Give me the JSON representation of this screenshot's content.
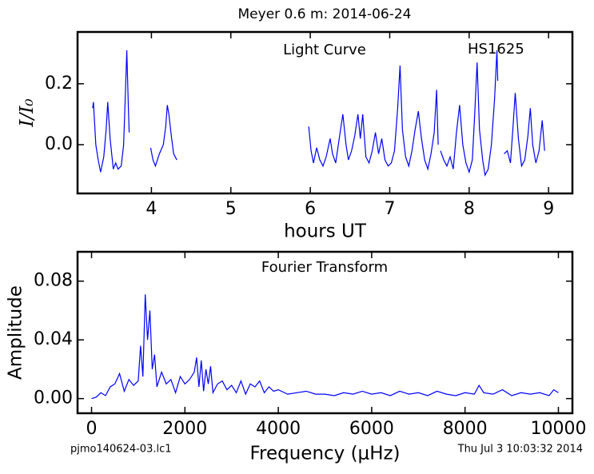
{
  "title": "Meyer 0.6 m:  2014-06-24",
  "footer_left": "pjmo140624-03.lc1",
  "footer_right": "Thu Jul  3 10:03:32 2014",
  "chart_data": [
    {
      "type": "line",
      "annotations": [
        "Light Curve",
        "HS1625"
      ],
      "xlabel": "hours UT",
      "ylabel": "I/I₀",
      "color": "#0000ff",
      "xlim": [
        3.07,
        9.3
      ],
      "xticks": [
        4,
        5,
        6,
        7,
        8,
        9
      ],
      "ylim": [
        -0.16,
        0.37
      ],
      "yticks": [
        {
          "value": 0,
          "label": "0.0"
        },
        {
          "value": 0.2,
          "label": "0.2"
        }
      ],
      "x": [
        3.26,
        3.27,
        3.3,
        3.33,
        3.36,
        3.4,
        3.43,
        3.45,
        3.48,
        3.52,
        3.55,
        3.58,
        3.62,
        3.65,
        3.67,
        3.69,
        3.71,
        3.72,
        null,
        3.99,
        4.02,
        4.05,
        4.1,
        4.15,
        4.18,
        4.2,
        4.22,
        4.25,
        4.28,
        4.32,
        null,
        5.98,
        6.01,
        6.04,
        6.08,
        6.12,
        6.16,
        6.2,
        6.25,
        6.28,
        6.32,
        6.37,
        6.41,
        6.45,
        6.48,
        6.52,
        6.56,
        6.6,
        6.63,
        6.66,
        6.7,
        6.74,
        6.78,
        6.82,
        6.86,
        6.9,
        6.94,
        6.98,
        7.02,
        7.06,
        7.1,
        7.13,
        7.16,
        7.2,
        7.24,
        7.28,
        7.32,
        7.36,
        7.4,
        7.44,
        7.48,
        7.52,
        7.56,
        7.59,
        7.61,
        null,
        7.64,
        7.68,
        7.72,
        7.76,
        7.8,
        7.84,
        7.88,
        7.92,
        7.96,
        8.0,
        8.04,
        8.07,
        8.1,
        8.13,
        8.17,
        8.2,
        8.24,
        8.28,
        8.32,
        8.35,
        8.36,
        null,
        8.44,
        8.48,
        8.52,
        8.55,
        8.58,
        8.62,
        8.66,
        8.7,
        8.74,
        8.77,
        8.8,
        8.84,
        8.88,
        8.92,
        8.95
      ],
      "values": [
        0.12,
        0.14,
        0.0,
        -0.05,
        -0.09,
        -0.04,
        0.05,
        0.14,
        0.02,
        -0.08,
        -0.06,
        -0.08,
        -0.07,
        0.0,
        0.15,
        0.31,
        0.12,
        0.04,
        null,
        -0.01,
        -0.05,
        -0.07,
        -0.03,
        0.0,
        0.06,
        0.13,
        0.1,
        0.03,
        -0.03,
        -0.05,
        null,
        0.06,
        -0.02,
        -0.06,
        -0.01,
        -0.05,
        -0.07,
        -0.04,
        0.02,
        -0.03,
        -0.06,
        0.03,
        0.1,
        0.0,
        -0.05,
        -0.02,
        0.03,
        0.1,
        0.02,
        0.1,
        -0.04,
        -0.06,
        -0.02,
        0.04,
        -0.03,
        0.02,
        -0.05,
        -0.07,
        -0.06,
        -0.02,
        0.12,
        0.26,
        0.05,
        -0.04,
        -0.07,
        -0.02,
        0.05,
        0.11,
        0.02,
        -0.05,
        -0.08,
        -0.03,
        0.04,
        0.18,
        0.0,
        null,
        -0.02,
        -0.05,
        -0.07,
        -0.04,
        -0.08,
        0.04,
        0.13,
        0.0,
        -0.06,
        -0.09,
        -0.05,
        0.1,
        0.27,
        0.05,
        -0.05,
        -0.1,
        -0.08,
        0.0,
        0.15,
        0.31,
        0.21,
        null,
        -0.03,
        -0.02,
        -0.06,
        0.05,
        0.17,
        0.02,
        -0.07,
        -0.05,
        0.03,
        0.12,
        0.0,
        -0.06,
        -0.02,
        0.08,
        -0.02
      ]
    },
    {
      "type": "line",
      "annotations": [
        "Fourier Transform"
      ],
      "xlabel": "Frequency (μHz)",
      "ylabel": "Amplitude",
      "color": "#0000ff",
      "xlim": [
        -300,
        10300
      ],
      "xticks": [
        0,
        2000,
        4000,
        6000,
        8000,
        10000
      ],
      "ylim": [
        -0.01,
        0.1
      ],
      "yticks": [
        {
          "value": 0,
          "label": "0.00"
        },
        {
          "value": 0.04,
          "label": "0.04"
        },
        {
          "value": 0.08,
          "label": "0.08"
        }
      ],
      "x": [
        0,
        100,
        200,
        300,
        400,
        500,
        600,
        700,
        800,
        900,
        1000,
        1050,
        1100,
        1150,
        1200,
        1250,
        1300,
        1350,
        1400,
        1500,
        1600,
        1700,
        1800,
        1900,
        2000,
        2100,
        2200,
        2250,
        2300,
        2350,
        2400,
        2450,
        2500,
        2550,
        2600,
        2700,
        2800,
        2900,
        3000,
        3100,
        3200,
        3300,
        3400,
        3500,
        3600,
        3700,
        3800,
        3900,
        4000,
        4200,
        4400,
        4600,
        4800,
        5000,
        5200,
        5400,
        5600,
        5800,
        6000,
        6200,
        6400,
        6600,
        6800,
        7000,
        7200,
        7400,
        7600,
        7800,
        8000,
        8200,
        8300,
        8400,
        8600,
        8800,
        9000,
        9200,
        9400,
        9600,
        9800,
        9900,
        10000
      ],
      "values": [
        0.0,
        0.001,
        0.004,
        0.002,
        0.008,
        0.01,
        0.017,
        0.005,
        0.013,
        0.009,
        0.012,
        0.036,
        0.015,
        0.071,
        0.04,
        0.06,
        0.02,
        0.03,
        0.008,
        0.018,
        0.01,
        0.013,
        0.004,
        0.015,
        0.01,
        0.013,
        0.018,
        0.028,
        0.008,
        0.026,
        0.005,
        0.02,
        0.01,
        0.022,
        0.004,
        0.01,
        0.012,
        0.006,
        0.009,
        0.004,
        0.012,
        0.003,
        0.01,
        0.008,
        0.012,
        0.004,
        0.008,
        0.005,
        0.006,
        0.003,
        0.004,
        0.005,
        0.003,
        0.003,
        0.002,
        0.004,
        0.003,
        0.005,
        0.003,
        0.004,
        0.002,
        0.005,
        0.003,
        0.004,
        0.002,
        0.005,
        0.003,
        0.002,
        0.004,
        0.003,
        0.009,
        0.004,
        0.003,
        0.006,
        0.002,
        0.004,
        0.003,
        0.004,
        0.002,
        0.006,
        0.004
      ]
    }
  ]
}
